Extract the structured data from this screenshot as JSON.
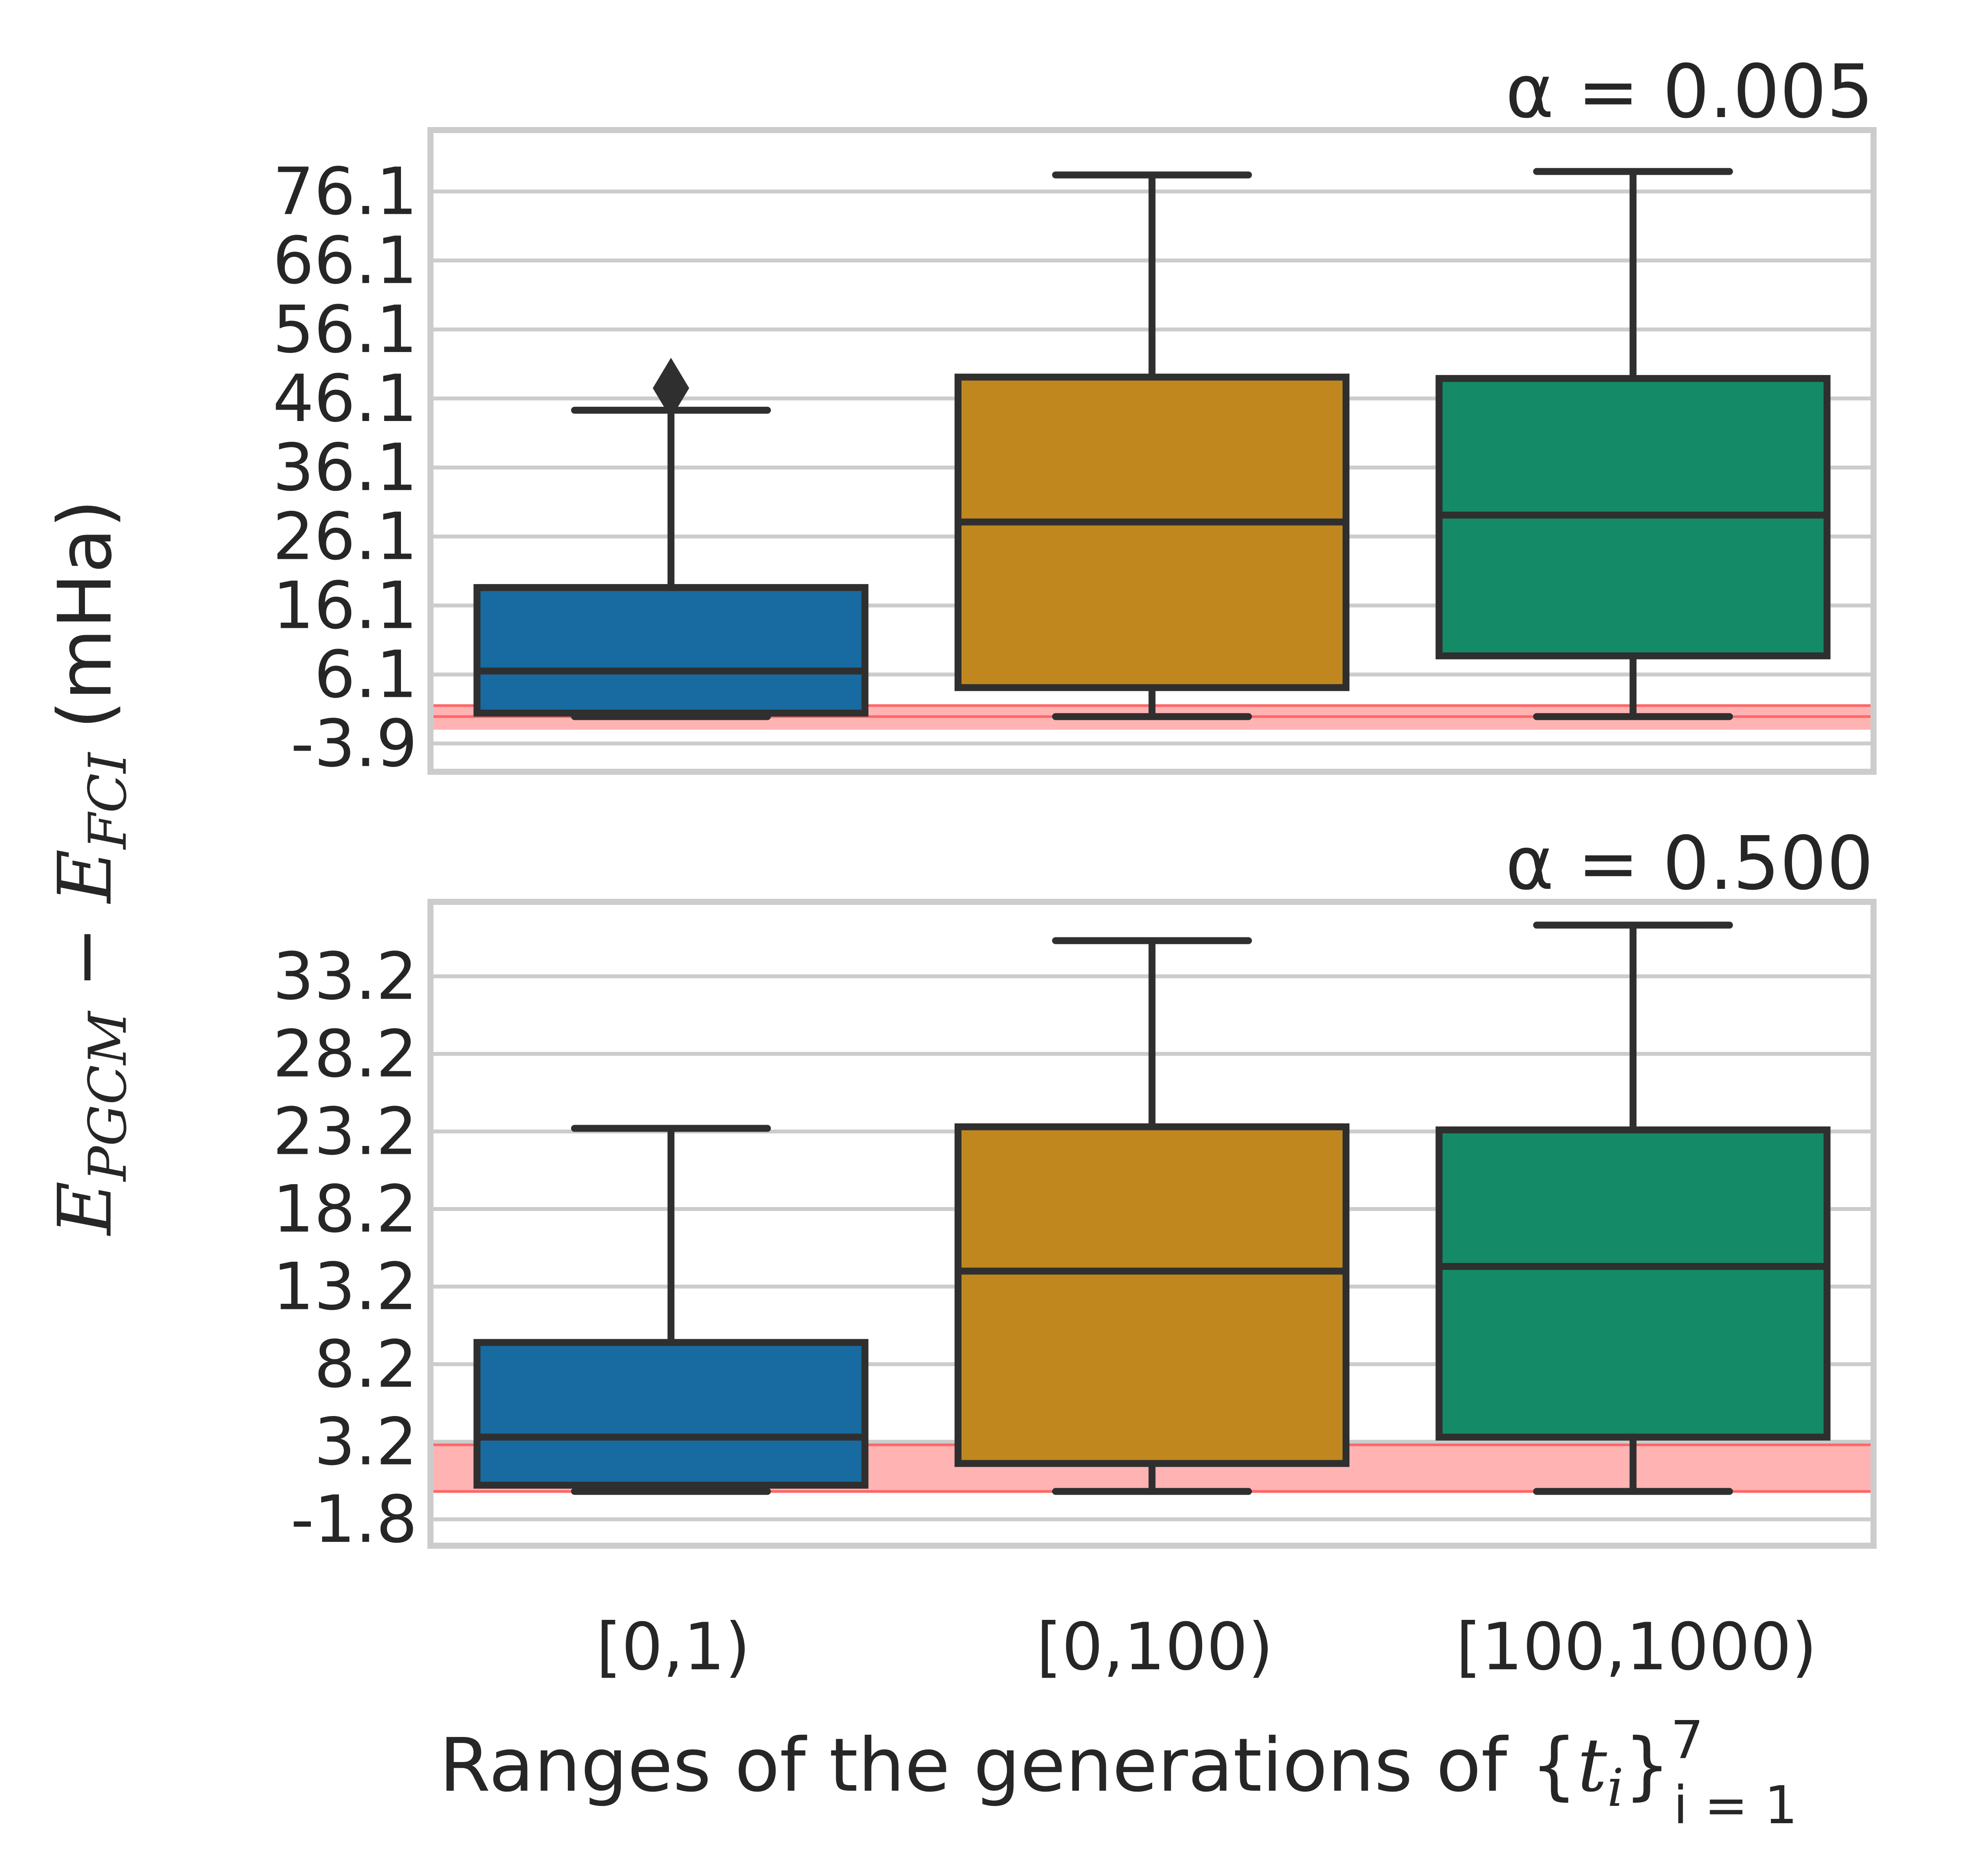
{
  "chart_data": [
    {
      "type": "box",
      "title": "α = 0.005",
      "xlabel": "",
      "ylabel": "",
      "ylim": [
        -8,
        85
      ],
      "yticks": [
        -3.9,
        6.1,
        16.1,
        26.1,
        36.1,
        46.1,
        56.1,
        66.1,
        76.1
      ],
      "ytick_labels": [
        "-3.9",
        "6.1",
        "16.1",
        "26.1",
        "36.1",
        "46.1",
        "56.1",
        "66.1",
        "76.1"
      ],
      "reference_band": [
        -1.9,
        1.6
      ],
      "reference_line": 0,
      "categories": [
        "[0,1)",
        "[0,100)",
        "[100,1000)"
      ],
      "boxes": [
        {
          "category": "[0,1)",
          "whisker_low": 0,
          "q1": 0.5,
          "median": 6.6,
          "q3": 18.7,
          "whisker_high": 44.4,
          "outliers": [
            47.6
          ],
          "color": "#176ba0"
        },
        {
          "category": "[0,100)",
          "whisker_low": 0,
          "q1": 4.2,
          "median": 28.2,
          "q3": 49.2,
          "whisker_high": 78.5,
          "outliers": [],
          "color": "#c0871f"
        },
        {
          "category": "[100,1000)",
          "whisker_low": 0,
          "q1": 8.8,
          "median": 29.2,
          "q3": 49.0,
          "whisker_high": 79.0,
          "outliers": [],
          "color": "#148a66"
        }
      ]
    },
    {
      "type": "box",
      "title": "α = 0.500",
      "xlabel": "",
      "ylabel": "",
      "ylim": [
        -3.5,
        38
      ],
      "yticks": [
        -1.8,
        3.2,
        8.2,
        13.2,
        18.2,
        23.2,
        28.2,
        33.2
      ],
      "ytick_labels": [
        "-1.8",
        "3.2",
        "8.2",
        "13.2",
        "18.2",
        "23.2",
        "28.2",
        "33.2"
      ],
      "reference_band": [
        -0.1,
        3.0
      ],
      "reference_line": 0,
      "categories": [
        "[0,1)",
        "[0,100)",
        "[100,1000)"
      ],
      "boxes": [
        {
          "category": "[0,1)",
          "whisker_low": 0,
          "q1": 0.4,
          "median": 3.5,
          "q3": 9.6,
          "whisker_high": 23.4,
          "outliers": [],
          "color": "#176ba0"
        },
        {
          "category": "[0,100)",
          "whisker_low": 0,
          "q1": 1.8,
          "median": 14.2,
          "q3": 23.5,
          "whisker_high": 35.5,
          "outliers": [],
          "color": "#c0871f"
        },
        {
          "category": "[100,1000)",
          "whisker_low": 0,
          "q1": 3.5,
          "median": 14.5,
          "q3": 23.3,
          "whisker_high": 36.5,
          "outliers": [],
          "color": "#148a66"
        }
      ]
    }
  ],
  "shared": {
    "ylabel_main": "E",
    "ylabel_sub1": "PGCM",
    "ylabel_minus": " − ",
    "ylabel_main2": "E",
    "ylabel_sub2": "FCI",
    "ylabel_unit": " (mHa)",
    "xlabel_text": "Ranges of the generations of {",
    "xlabel_var": "t",
    "xlabel_var_sub": "i",
    "xlabel_close": "}",
    "xlabel_sup": "7",
    "xlabel_sub": "i = 1"
  },
  "colors": {
    "grid": "#cccccc",
    "frame": "#cccccc",
    "line": "#2f2f2f",
    "band": "#ff9999",
    "band_line": "#ff6666"
  }
}
